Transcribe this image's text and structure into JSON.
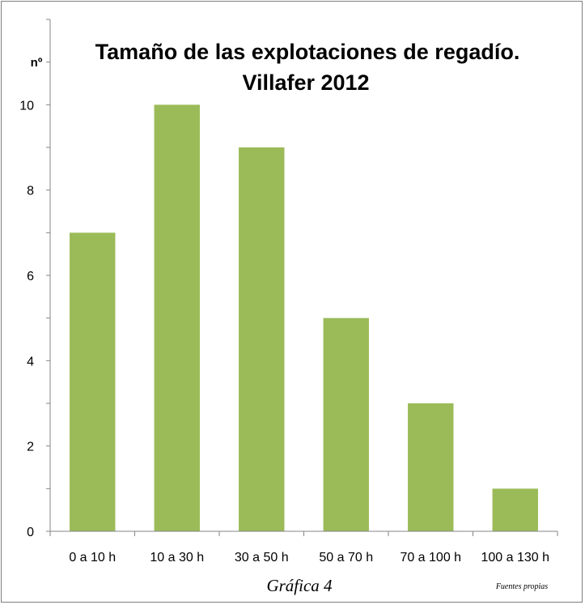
{
  "chart_data": {
    "type": "bar",
    "title_lines": [
      "Tamaño de las explotaciones de regadío.",
      "Villafer 2012"
    ],
    "ylabel": "nº",
    "xlabel": "",
    "categories": [
      "0 a 10 h",
      "10 a 30 h",
      "30 a 50 h",
      "50 a 70 h",
      "70 a 100 h",
      "100 a 130 h"
    ],
    "values": [
      7,
      10,
      9,
      5,
      3,
      1
    ],
    "ylim": [
      0,
      12
    ],
    "yticks": [
      0,
      2,
      4,
      6,
      8,
      10
    ],
    "grid": false,
    "bar_color": "#9bbb59",
    "axis_color": "#868686"
  },
  "caption": "Gráfica 4",
  "source": "Fuentes propias"
}
